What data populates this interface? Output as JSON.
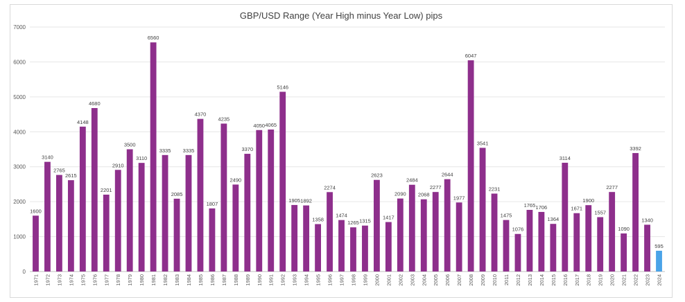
{
  "chart_data": {
    "type": "bar",
    "title": "GBP/USD Range (Year High minus Year Low) pips",
    "categories": [
      "1971",
      "1972",
      "1973",
      "1974",
      "1975",
      "1976",
      "1977",
      "1978",
      "1979",
      "1980",
      "1981",
      "1982",
      "1983",
      "1984",
      "1985",
      "1986",
      "1987",
      "1988",
      "1989",
      "1990",
      "1991",
      "1992",
      "1993",
      "1994",
      "1995",
      "1996",
      "1997",
      "1998",
      "1999",
      "2000",
      "2001",
      "2002",
      "2003",
      "2004",
      "2005",
      "2006",
      "2007",
      "2008",
      "2009",
      "2010",
      "2011",
      "2012",
      "2013",
      "2014",
      "2015",
      "2016",
      "2017",
      "2018",
      "2019",
      "2020",
      "2021",
      "2022",
      "2023",
      "2024"
    ],
    "values": [
      1600,
      3140,
      2765,
      2615,
      4148,
      4680,
      2201,
      2910,
      3500,
      3110,
      6560,
      3335,
      2085,
      3335,
      4370,
      1807,
      4235,
      2490,
      3370,
      4050,
      4065,
      5146,
      1905,
      1892,
      1358,
      2274,
      1474,
      1265,
      1315,
      2623,
      1417,
      2090,
      2484,
      2068,
      2277,
      2644,
      1977,
      6047,
      3541,
      2231,
      1475,
      1076,
      1765,
      1706,
      1364,
      3114,
      1671,
      1900,
      1557,
      2277,
      1090,
      3392,
      1340,
      595
    ],
    "ylim": [
      0,
      7000
    ],
    "yticks": [
      0,
      1000,
      2000,
      3000,
      4000,
      5000,
      6000,
      7000
    ],
    "grid": true,
    "colors": {
      "bar": "#8e2f8c",
      "highlight": "#4aa3e8"
    },
    "highlight_category": "2024"
  }
}
